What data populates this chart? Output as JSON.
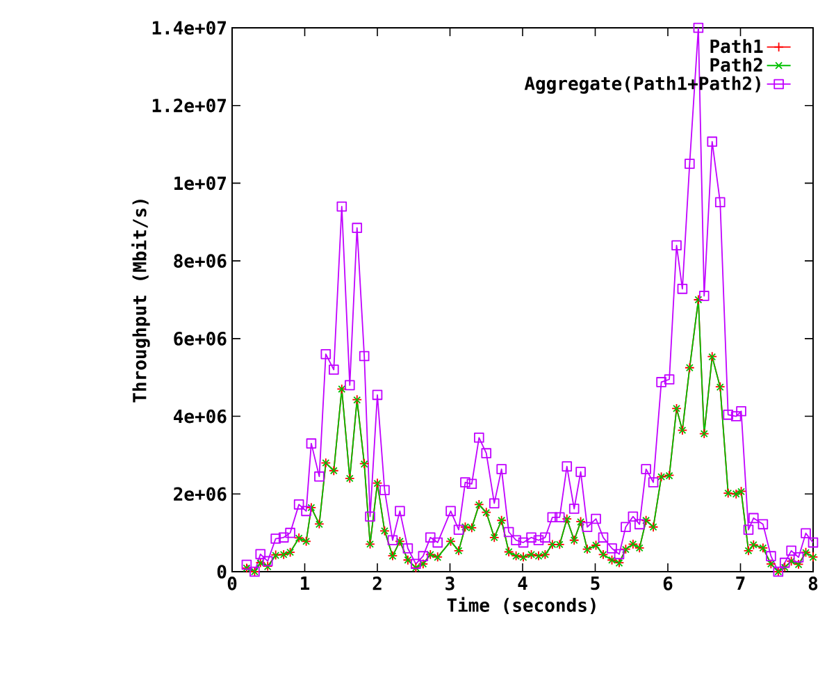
{
  "chart_data": {
    "type": "line",
    "xlabel": "Time (seconds)",
    "ylabel": "Throughput (Mbit/s)",
    "x": [
      0.2,
      0.31,
      0.39,
      0.49,
      0.6,
      0.71,
      0.8,
      0.92,
      1.02,
      1.09,
      1.2,
      1.29,
      1.4,
      1.51,
      1.62,
      1.72,
      1.82,
      1.9,
      2.0,
      2.1,
      2.21,
      2.31,
      2.42,
      2.53,
      2.63,
      2.73,
      2.83,
      3.01,
      3.12,
      3.21,
      3.3,
      3.4,
      3.5,
      3.61,
      3.71,
      3.81,
      3.91,
      4.01,
      4.12,
      4.22,
      4.31,
      4.41,
      4.51,
      4.61,
      4.71,
      4.8,
      4.89,
      5.01,
      5.11,
      5.23,
      5.33,
      5.42,
      5.52,
      5.61,
      5.7,
      5.8,
      5.91,
      6.02,
      6.12,
      6.2,
      6.3,
      6.42,
      6.5,
      6.61,
      6.72,
      6.83,
      6.94,
      7.01,
      7.11,
      7.18,
      7.31,
      7.42,
      7.52,
      7.61,
      7.7,
      7.8,
      7.9,
      8.0
    ],
    "series": [
      {
        "name": "Path1",
        "color": "#ff0000",
        "marker": "plus",
        "values": [
          90000.0,
          0,
          230000.0,
          140000.0,
          430000.0,
          440000.0,
          500000.0,
          870000.0,
          780000.0,
          1650000.0,
          1230000.0,
          2800000.0,
          2600000.0,
          4700000.0,
          2400000.0,
          4430000.0,
          2780000.0,
          710000.0,
          2280000.0,
          1050000.0,
          410000.0,
          780000.0,
          300000.0,
          100000.0,
          200000.0,
          440000.0,
          380000.0,
          780000.0,
          540000.0,
          1150000.0,
          1130000.0,
          1730000.0,
          1530000.0,
          880000.0,
          1320000.0,
          510000.0,
          410000.0,
          380000.0,
          440000.0,
          410000.0,
          440000.0,
          700000.0,
          700000.0,
          1360000.0,
          810000.0,
          1290000.0,
          580000.0,
          680000.0,
          440000.0,
          300000.0,
          230000.0,
          580000.0,
          710000.0,
          610000.0,
          1320000.0,
          1150000.0,
          2440000.0,
          2480000.0,
          4200000.0,
          3640000.0,
          5250000.0,
          7000000.0,
          3550000.0,
          5540000.0,
          4760000.0,
          2020000.0,
          2000000.0,
          2070000.0,
          540000.0,
          690000.0,
          610000.0,
          200000.0,
          0,
          120000.0,
          270000.0,
          190000.0,
          500000.0,
          380000.0
        ]
      },
      {
        "name": "Path2",
        "color": "#00c000",
        "marker": "cross",
        "values": [
          90000.0,
          0,
          220000.0,
          130000.0,
          420000.0,
          440000.0,
          500000.0,
          860000.0,
          780000.0,
          1650000.0,
          1220000.0,
          2800000.0,
          2600000.0,
          4700000.0,
          2400000.0,
          4420000.0,
          2770000.0,
          710000.0,
          2270000.0,
          1050000.0,
          400000.0,
          780000.0,
          300000.0,
          100000.0,
          200000.0,
          440000.0,
          370000.0,
          780000.0,
          540000.0,
          1150000.0,
          1130000.0,
          1720000.0,
          1520000.0,
          880000.0,
          1320000.0,
          510000.0,
          400000.0,
          370000.0,
          440000.0,
          400000.0,
          440000.0,
          700000.0,
          700000.0,
          1350000.0,
          810000.0,
          1280000.0,
          570000.0,
          680000.0,
          440000.0,
          300000.0,
          220000.0,
          570000.0,
          710000.0,
          610000.0,
          1320000.0,
          1150000.0,
          2440000.0,
          2470000.0,
          4200000.0,
          3640000.0,
          5250000.0,
          7000000.0,
          3550000.0,
          5530000.0,
          4750000.0,
          2020000.0,
          2000000.0,
          2060000.0,
          540000.0,
          690000.0,
          610000.0,
          200000.0,
          0,
          110000.0,
          270000.0,
          180000.0,
          490000.0,
          370000.0
        ]
      },
      {
        "name": "Aggregate(Path1+Path2)",
        "color": "#c000ff",
        "marker": "square",
        "values": [
          180000.0,
          0,
          450000.0,
          270000.0,
          850000.0,
          880000.0,
          1000000.0,
          1730000.0,
          1560000.0,
          3300000.0,
          2450000.0,
          5600000.0,
          5200000.0,
          9400000.0,
          4800000.0,
          8850000.0,
          5550000.0,
          1420000.0,
          4550000.0,
          2100000.0,
          810000.0,
          1560000.0,
          600000.0,
          200000.0,
          400000.0,
          880000.0,
          750000.0,
          1560000.0,
          1080000.0,
          2300000.0,
          2260000.0,
          3450000.0,
          3050000.0,
          1760000.0,
          2640000.0,
          1020000.0,
          810000.0,
          750000.0,
          880000.0,
          810000.0,
          880000.0,
          1400000.0,
          1400000.0,
          2710000.0,
          1620000.0,
          2570000.0,
          1150000.0,
          1360000.0,
          880000.0,
          600000.0,
          450000.0,
          1150000.0,
          1420000.0,
          1220000.0,
          2640000.0,
          2300000.0,
          4880000.0,
          4950000.0,
          8400000.0,
          7280000.0,
          10500000.0,
          14000000.0,
          7100000.0,
          11070000.0,
          9510000.0,
          4040000.0,
          4000000.0,
          4130000.0,
          1080000.0,
          1380000.0,
          1220000.0,
          400000.0,
          0,
          230000.0,
          540000.0,
          370000.0,
          990000.0,
          750000.0
        ]
      }
    ],
    "xlim": [
      0,
      8
    ],
    "ylim": [
      0,
      14000000
    ],
    "xticks": [
      0,
      1,
      2,
      3,
      4,
      5,
      6,
      7,
      8
    ],
    "yticks": [
      0,
      {
        "value": 2000000,
        "label": "2e+06"
      },
      {
        "value": 4000000,
        "label": "4e+06"
      },
      {
        "value": 6000000,
        "label": "6e+06"
      },
      {
        "value": 8000000,
        "label": "8e+06"
      },
      {
        "value": 10000000,
        "label": "1e+07"
      },
      {
        "value": 12000000,
        "label": "1.2e+07"
      },
      {
        "value": 14000000,
        "label": "1.4e+07"
      }
    ],
    "legend": "top right"
  }
}
